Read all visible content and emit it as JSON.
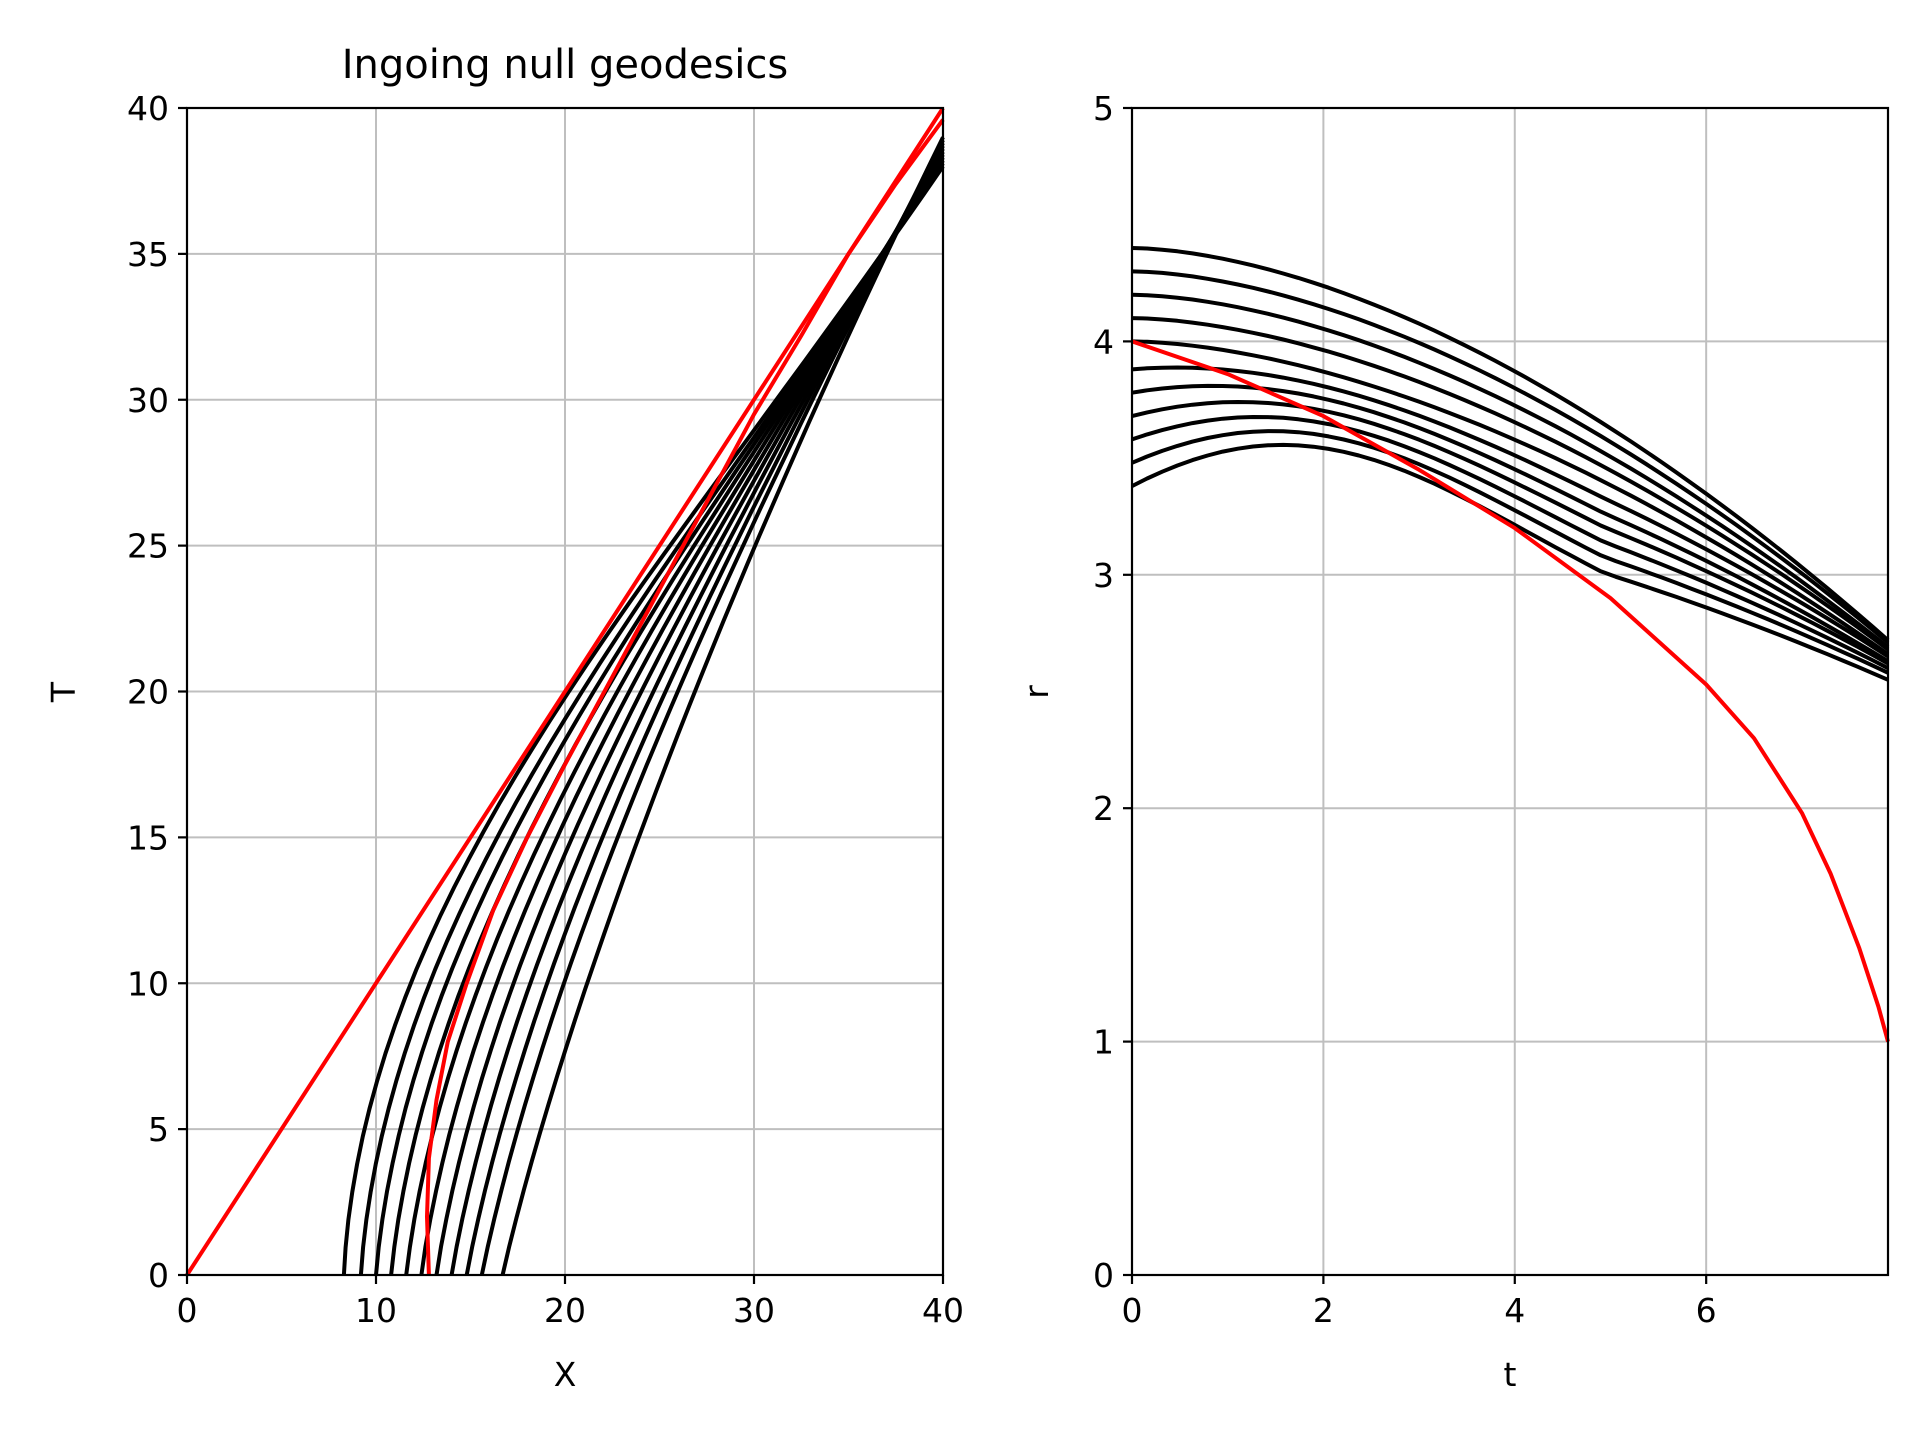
{
  "chart_data": [
    {
      "type": "line",
      "title": "Ingoing null geodesics",
      "xlabel": "X",
      "ylabel": "T",
      "xlim": [
        0,
        40
      ],
      "ylim": [
        0,
        40
      ],
      "xticks": [
        0,
        10,
        20,
        30,
        40
      ],
      "yticks": [
        0,
        5,
        10,
        15,
        20,
        25,
        30,
        35,
        40
      ],
      "grid": true,
      "colors": {
        "geodesic": "#000000",
        "highlight": "#ff0000"
      },
      "black_curves_start_x": [
        8.3,
        9.2,
        10.0,
        10.8,
        11.6,
        12.4,
        13.2,
        14.0,
        14.8,
        15.6,
        16.7
      ],
      "red_series": [
        {
          "x": [
            0,
            40
          ],
          "y": [
            0,
            40
          ]
        },
        {
          "x": [
            12.8,
            12.7,
            12.8,
            13.2,
            13.8,
            14.8,
            16.2,
            18.0,
            20.0,
            22.5,
            25.0,
            27.5,
            30.0,
            32.5,
            35.0,
            37.5,
            40.0
          ],
          "y": [
            0,
            2,
            4,
            6,
            8,
            10,
            12.5,
            15,
            17.5,
            20.5,
            23.5,
            26.5,
            29.5,
            32.2,
            35.0,
            37.4,
            39.6
          ]
        }
      ]
    },
    {
      "type": "line",
      "title": "",
      "xlabel": "t",
      "ylabel": "r",
      "xlim": [
        0,
        7.9
      ],
      "ylim": [
        0,
        5
      ],
      "xticks": [
        0,
        2,
        4,
        6
      ],
      "yticks": [
        0,
        1,
        2,
        3,
        4,
        5
      ],
      "grid": true,
      "colors": {
        "geodesic": "#000000",
        "highlight": "#ff0000"
      },
      "black_curves_start_r": [
        3.38,
        3.48,
        3.58,
        3.68,
        3.78,
        3.88,
        4.0,
        4.1,
        4.2,
        4.3,
        4.4
      ],
      "black_curves_end_r": [
        2.55,
        2.58,
        2.6,
        2.62,
        2.63,
        2.65,
        2.66,
        2.68,
        2.69,
        2.71,
        2.72
      ],
      "red_series": [
        {
          "x": [
            0,
            1,
            2,
            3,
            4,
            5,
            6,
            6.5,
            7,
            7.3,
            7.6,
            7.8,
            7.9
          ],
          "y": [
            4.0,
            3.86,
            3.68,
            3.45,
            3.2,
            2.9,
            2.53,
            2.3,
            1.98,
            1.72,
            1.4,
            1.15,
            1.0
          ]
        }
      ]
    }
  ]
}
